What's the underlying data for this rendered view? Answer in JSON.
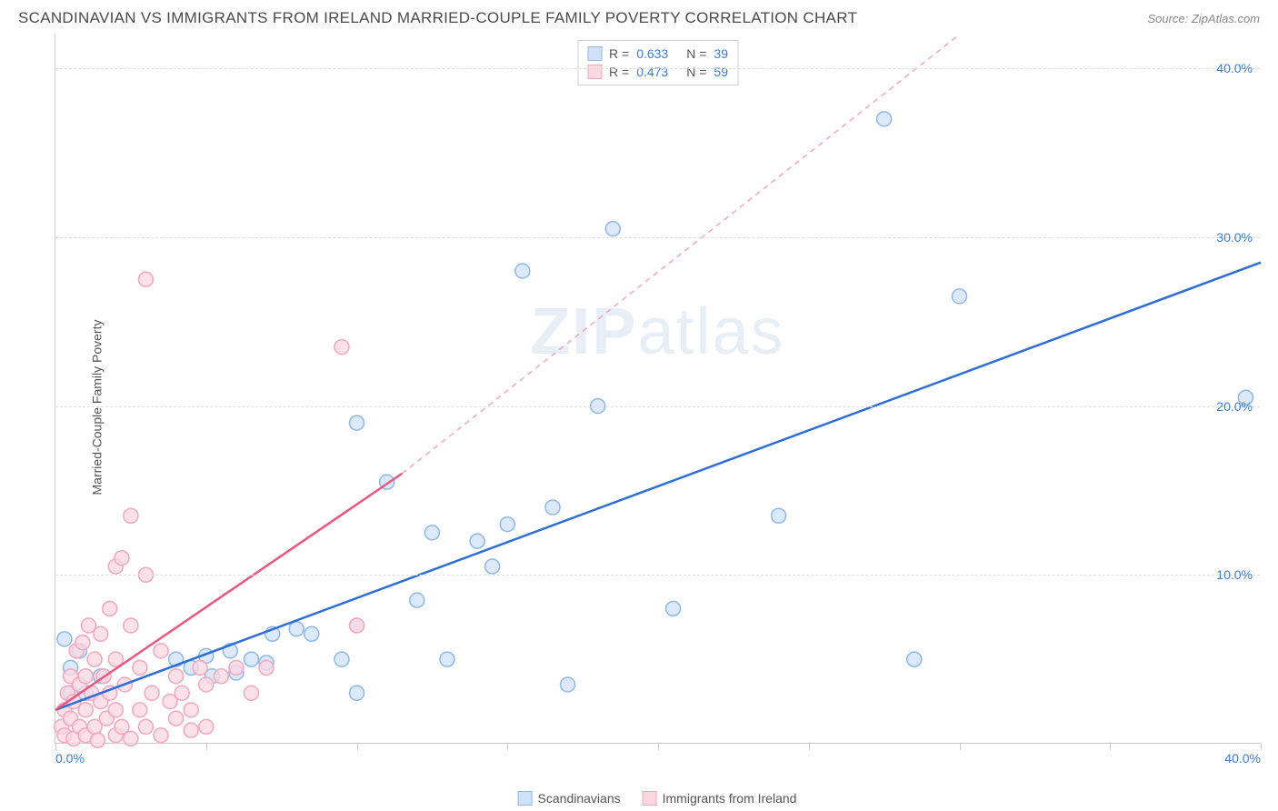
{
  "header": {
    "title": "SCANDINAVIAN VS IMMIGRANTS FROM IRELAND MARRIED-COUPLE FAMILY POVERTY CORRELATION CHART",
    "source": "Source: ZipAtlas.com"
  },
  "watermark": {
    "part1": "ZIP",
    "part2": "atlas"
  },
  "axes": {
    "y_label": "Married-Couple Family Poverty",
    "xlim": [
      0,
      40
    ],
    "ylim": [
      0,
      42
    ],
    "y_ticks": [
      10,
      20,
      30,
      40
    ],
    "y_tick_labels": [
      "10.0%",
      "20.0%",
      "30.0%",
      "40.0%"
    ],
    "x_tick_positions": [
      0,
      20,
      40
    ],
    "x_tick_labels": [
      "0.0%",
      "",
      "40.0%"
    ],
    "x_minor_ticks": [
      0,
      5,
      10,
      15,
      20,
      25,
      30,
      35,
      40
    ],
    "grid_color": "#dddddd",
    "axis_color": "#cccccc",
    "tick_label_color": "#3b7dd8",
    "label_fontsize": 14
  },
  "legend_top": {
    "rows": [
      {
        "swatch_fill": "#cfe2f9",
        "swatch_stroke": "#8fb8e8",
        "r_label": "R =",
        "r_value": "0.633",
        "n_label": "N =",
        "n_value": "39"
      },
      {
        "swatch_fill": "#fbd7e1",
        "swatch_stroke": "#f3a7bd",
        "r_label": "R =",
        "r_value": "0.473",
        "n_label": "N =",
        "n_value": "59"
      }
    ]
  },
  "legend_bottom": {
    "items": [
      {
        "swatch_fill": "#cfe2f9",
        "swatch_stroke": "#8fb8e8",
        "label": "Scandinavians"
      },
      {
        "swatch_fill": "#fbd7e1",
        "swatch_stroke": "#f3a7bd",
        "label": "Immigrants from Ireland"
      }
    ]
  },
  "series": [
    {
      "name": "Scandinavians",
      "marker_fill": "#cfe2f9",
      "marker_stroke": "#8fb8e8",
      "marker_r": 8,
      "line_color": "#2d6fd6",
      "line_width": 2.5,
      "trend": {
        "x1": 0,
        "y1": 2,
        "x2": 40,
        "y2": 28.5
      },
      "points": [
        [
          0.3,
          6.2
        ],
        [
          0.5,
          3.0
        ],
        [
          0.5,
          4.5
        ],
        [
          0.8,
          5.5
        ],
        [
          1.0,
          3.0
        ],
        [
          1.5,
          4.0
        ],
        [
          4.0,
          5.0
        ],
        [
          4.5,
          4.5
        ],
        [
          5.0,
          5.2
        ],
        [
          5.2,
          4.0
        ],
        [
          5.8,
          5.5
        ],
        [
          6.0,
          4.2
        ],
        [
          6.5,
          5.0
        ],
        [
          7.0,
          4.8
        ],
        [
          7.2,
          6.5
        ],
        [
          8.0,
          6.8
        ],
        [
          8.5,
          6.5
        ],
        [
          9.5,
          5.0
        ],
        [
          10.0,
          7.0
        ],
        [
          10.0,
          3.0
        ],
        [
          10.0,
          19.0
        ],
        [
          11.0,
          15.5
        ],
        [
          12.0,
          8.5
        ],
        [
          12.5,
          12.5
        ],
        [
          13.0,
          5.0
        ],
        [
          14.0,
          12.0
        ],
        [
          14.5,
          10.5
        ],
        [
          15.0,
          13.0
        ],
        [
          15.5,
          28.0
        ],
        [
          16.5,
          14.0
        ],
        [
          17.0,
          3.5
        ],
        [
          18.0,
          20.0
        ],
        [
          18.5,
          30.5
        ],
        [
          20.5,
          8.0
        ],
        [
          24.0,
          13.5
        ],
        [
          27.5,
          37.0
        ],
        [
          28.5,
          5.0
        ],
        [
          30.0,
          26.5
        ],
        [
          39.5,
          20.5
        ]
      ]
    },
    {
      "name": "Immigrants from Ireland",
      "marker_fill": "#fbd7e1",
      "marker_stroke": "#f3a7bd",
      "marker_r": 8,
      "line_color": "#e8587f",
      "line_width": 2.5,
      "trend": {
        "x1": 0,
        "y1": 2,
        "x2": 11.5,
        "y2": 16
      },
      "trend_dash": {
        "x1": 11.5,
        "y1": 16,
        "x2": 30,
        "y2": 42
      },
      "points": [
        [
          0.2,
          1.0
        ],
        [
          0.3,
          0.5
        ],
        [
          0.3,
          2.0
        ],
        [
          0.4,
          3.0
        ],
        [
          0.5,
          1.5
        ],
        [
          0.5,
          4.0
        ],
        [
          0.6,
          0.3
        ],
        [
          0.6,
          2.5
        ],
        [
          0.7,
          5.5
        ],
        [
          0.8,
          1.0
        ],
        [
          0.8,
          3.5
        ],
        [
          0.9,
          6.0
        ],
        [
          1.0,
          0.5
        ],
        [
          1.0,
          2.0
        ],
        [
          1.0,
          4.0
        ],
        [
          1.1,
          7.0
        ],
        [
          1.2,
          3.0
        ],
        [
          1.3,
          1.0
        ],
        [
          1.3,
          5.0
        ],
        [
          1.4,
          0.2
        ],
        [
          1.5,
          2.5
        ],
        [
          1.5,
          6.5
        ],
        [
          1.6,
          4.0
        ],
        [
          1.7,
          1.5
        ],
        [
          1.8,
          8.0
        ],
        [
          1.8,
          3.0
        ],
        [
          2.0,
          0.5
        ],
        [
          2.0,
          2.0
        ],
        [
          2.0,
          5.0
        ],
        [
          2.0,
          10.5
        ],
        [
          2.2,
          1.0
        ],
        [
          2.2,
          11.0
        ],
        [
          2.3,
          3.5
        ],
        [
          2.5,
          0.3
        ],
        [
          2.5,
          7.0
        ],
        [
          2.5,
          13.5
        ],
        [
          2.8,
          2.0
        ],
        [
          2.8,
          4.5
        ],
        [
          3.0,
          1.0
        ],
        [
          3.0,
          10.0
        ],
        [
          3.0,
          27.5
        ],
        [
          3.2,
          3.0
        ],
        [
          3.5,
          0.5
        ],
        [
          3.5,
          5.5
        ],
        [
          3.8,
          2.5
        ],
        [
          4.0,
          1.5
        ],
        [
          4.0,
          4.0
        ],
        [
          4.2,
          3.0
        ],
        [
          4.5,
          0.8
        ],
        [
          4.5,
          2.0
        ],
        [
          4.8,
          4.5
        ],
        [
          5.0,
          3.5
        ],
        [
          5.0,
          1.0
        ],
        [
          5.5,
          4.0
        ],
        [
          6.0,
          4.5
        ],
        [
          6.5,
          3.0
        ],
        [
          7.0,
          4.5
        ],
        [
          9.5,
          23.5
        ],
        [
          10.0,
          7.0
        ]
      ]
    }
  ]
}
